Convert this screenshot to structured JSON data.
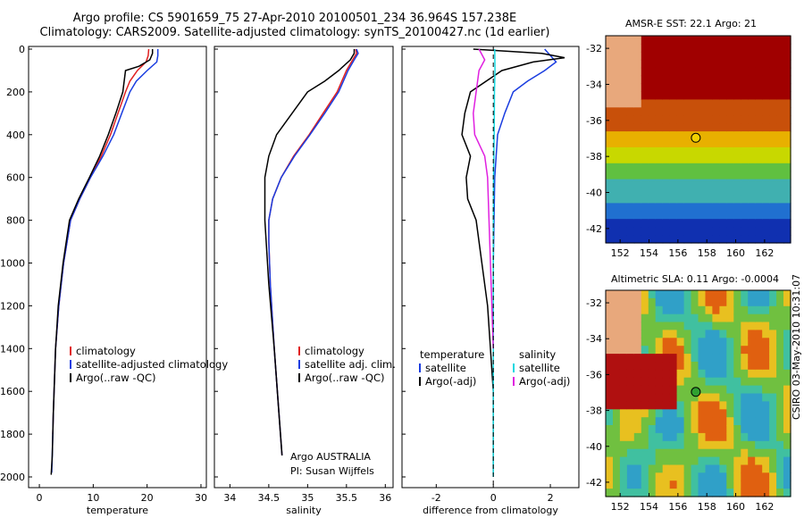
{
  "header": {
    "line1": "Argo profile: CS 5901659_75 27-Apr-2010 20100501_234 36.964S 157.238E",
    "line2": "Climatology: CARS2009. Satellite-adjusted climatology: synTS_20100427.nc (1d earlier)"
  },
  "colors": {
    "climatology": "#e02020",
    "satellite": "#1a3de0",
    "argo": "#000000",
    "sat_diff_salinity": "#19d8e0",
    "argo_diff_salinity": "#e020e0"
  },
  "chart_data": [
    {
      "type": "line",
      "xlabel": "temperature",
      "ylabel": "",
      "xlim": [
        -2,
        31
      ],
      "ylim": [
        2050,
        0
      ],
      "xticks": [
        0,
        10,
        20,
        30
      ],
      "yticks": [
        0,
        200,
        400,
        600,
        800,
        1000,
        1200,
        1400,
        1600,
        1800,
        2000
      ],
      "legend": [
        "climatology",
        "satellite-adjusted climatology",
        "Argo(..raw -QC)"
      ],
      "series": [
        {
          "name": "climatology",
          "x": [
            20.3,
            20.2,
            19.8,
            18.2,
            16.8,
            16.0,
            14.6,
            13.2,
            11.5,
            9.5,
            7.5,
            5.8,
            4.5,
            3.6,
            3.0,
            2.6,
            2.5
          ],
          "y": [
            0,
            30,
            60,
            100,
            150,
            200,
            300,
            400,
            500,
            600,
            700,
            800,
            1000,
            1200,
            1400,
            1700,
            1800
          ]
        },
        {
          "name": "satellite-adjusted climatology",
          "x": [
            22.0,
            22.0,
            21.8,
            20.0,
            18.0,
            16.8,
            15.3,
            13.8,
            11.8,
            9.5,
            7.5,
            5.8,
            4.5,
            3.6,
            3.0,
            2.6,
            2.4,
            2.3
          ],
          "y": [
            0,
            30,
            60,
            100,
            150,
            200,
            300,
            400,
            500,
            600,
            700,
            800,
            1000,
            1200,
            1400,
            1700,
            1900,
            1980
          ]
        },
        {
          "name": "Argo(..raw -QC)",
          "x": [
            21.0,
            21.0,
            20.5,
            18.5,
            16.0,
            15.5,
            14.2,
            12.8,
            11.2,
            9.3,
            7.3,
            5.6,
            4.4,
            3.5,
            3.0,
            2.6,
            2.4,
            2.2
          ],
          "y": [
            0,
            20,
            50,
            80,
            100,
            200,
            300,
            400,
            500,
            600,
            700,
            800,
            1000,
            1200,
            1400,
            1700,
            1900,
            1990
          ]
        }
      ]
    },
    {
      "type": "line",
      "xlabel": "salinity",
      "ylabel": "",
      "xlim": [
        33.8,
        36.1
      ],
      "ylim": [
        2050,
        0
      ],
      "xticks": [
        34,
        34.5,
        35,
        35.5,
        36
      ],
      "legend": [
        "climatology",
        "satellite adj. clim.",
        "Argo(..raw -QC)"
      ],
      "annotations": [
        "Argo AUSTRALIA",
        "PI: Susan Wijffels"
      ],
      "series": [
        {
          "name": "climatology",
          "x": [
            35.62,
            35.63,
            35.58,
            35.5,
            35.38,
            35.2,
            35.02,
            34.82,
            34.66,
            34.55,
            34.5,
            34.5,
            34.52,
            34.57,
            34.63,
            34.67
          ],
          "y": [
            0,
            20,
            50,
            100,
            200,
            300,
            400,
            500,
            600,
            700,
            800,
            900,
            1100,
            1400,
            1700,
            1900
          ]
        },
        {
          "name": "satellite adj. clim.",
          "x": [
            35.63,
            35.65,
            35.6,
            35.52,
            35.4,
            35.22,
            35.03,
            34.83,
            34.66,
            34.55,
            34.5,
            34.5,
            34.52,
            34.57,
            34.63,
            34.67
          ],
          "y": [
            0,
            20,
            50,
            100,
            200,
            300,
            400,
            500,
            600,
            700,
            800,
            900,
            1100,
            1400,
            1700,
            1900
          ]
        },
        {
          "name": "Argo(..raw -QC)",
          "x": [
            35.6,
            35.6,
            35.55,
            35.4,
            35.22,
            35.0,
            34.8,
            34.6,
            34.5,
            34.45,
            34.45,
            34.5,
            34.57,
            34.63,
            34.67
          ],
          "y": [
            0,
            20,
            50,
            100,
            150,
            200,
            300,
            400,
            500,
            600,
            800,
            1100,
            1400,
            1700,
            1900
          ]
        }
      ]
    },
    {
      "type": "line",
      "xlabel": "difference from climatology",
      "ylabel": "",
      "xlim": [
        -3.2,
        3.0
      ],
      "ylim": [
        2050,
        0
      ],
      "xticks": [
        -2,
        0,
        2
      ],
      "legend_title": [
        "temperature",
        "salinity"
      ],
      "legend": [
        "satellite",
        "Argo(-adj)",
        "satellite",
        "Argo(-adj)"
      ],
      "series": [
        {
          "name": "satellite",
          "x": [
            1.8,
            2.2,
            1.8,
            1.2,
            0.7,
            0.4,
            0.15,
            0.05,
            0.0
          ],
          "y": [
            0,
            60,
            100,
            150,
            200,
            300,
            400,
            600,
            1000
          ]
        },
        {
          "name": "Argo(-adj)",
          "x": [
            -0.7,
            1.7,
            2.5,
            1.4,
            0.3,
            -0.8,
            -1.0,
            -1.1,
            -0.8,
            -0.95,
            -0.9,
            -0.6,
            -0.4,
            -0.2,
            -0.1,
            0.0,
            0.0
          ],
          "y": [
            0,
            20,
            40,
            60,
            100,
            200,
            300,
            400,
            500,
            600,
            700,
            800,
            1000,
            1200,
            1400,
            1600,
            1990
          ]
        },
        {
          "name": "satellite",
          "x": [
            0.05,
            0.06,
            0.04,
            0.03,
            0.01,
            0.0,
            0.0
          ],
          "y": [
            0,
            100,
            200,
            400,
            600,
            1000,
            2000
          ]
        },
        {
          "name": "Argo(-adj)",
          "x": [
            -0.5,
            -0.3,
            -0.5,
            -0.6,
            -0.7,
            -0.65,
            -0.3,
            -0.2,
            -0.15,
            -0.1,
            -0.05,
            0.0
          ],
          "y": [
            0,
            50,
            100,
            200,
            300,
            400,
            500,
            600,
            800,
            1000,
            1200,
            1400
          ]
        }
      ]
    },
    {
      "type": "heatmap",
      "title": "AMSR-E SST: 22.1 Argo: 21",
      "xticks": [
        152,
        154,
        156,
        158,
        160,
        162
      ],
      "yticks": [
        -32,
        -34,
        -36,
        -38,
        -40,
        -42
      ],
      "marker": {
        "lon": 157.238,
        "lat": -36.964
      }
    },
    {
      "type": "heatmap",
      "title": "Altimetric SLA: 0.11 Argo: -0.0004",
      "xticks": [
        152,
        154,
        156,
        158,
        160,
        162
      ],
      "yticks": [
        -32,
        -34,
        -36,
        -38,
        -40,
        -42
      ],
      "marker": {
        "lon": 157.238,
        "lat": -36.964
      }
    }
  ],
  "stamp": "CSIRO 03-May-2010 10:31:07"
}
